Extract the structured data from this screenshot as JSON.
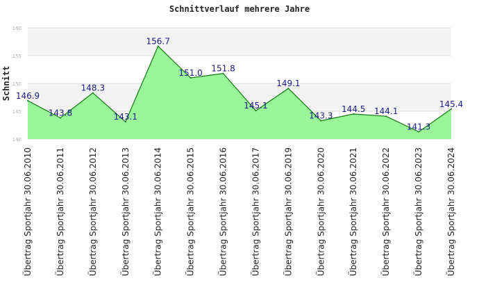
{
  "chart_data": {
    "type": "area",
    "title": "Schnittverlauf mehrere Jahre",
    "xlabel": "",
    "ylabel": "Schnitt",
    "ylim": [
      140,
      160
    ],
    "yticks": [
      140,
      145,
      150,
      155,
      160
    ],
    "grid": true,
    "categories": [
      "Übertrag Sportjahr 30.06.2010",
      "Übertrag Sportjahr 30.06.2011",
      "Übertrag Sportjahr 30.06.2012",
      "Übertrag Sportjahr 30.06.2013",
      "Übertrag Sportjahr 30.06.2014",
      "Übertrag Sportjahr 30.06.2015",
      "Übertrag Sportjahr 30.06.2016",
      "Übertrag Sportjahr 30.06.2017",
      "Übertrag Sportjahr 30.06.2019",
      "Übertrag Sportjahr 30.06.2020",
      "Übertrag Sportjahr 30.06.2021",
      "Übertrag Sportjahr 30.06.2022",
      "Übertrag Sportjahr 30.06.2023",
      "Übertrag Sportjahr 30.06.2024"
    ],
    "values": [
      146.9,
      143.8,
      148.3,
      143.1,
      156.7,
      151.0,
      151.8,
      145.1,
      149.1,
      143.3,
      144.5,
      144.1,
      141.3,
      145.4
    ],
    "value_labels": [
      "146.9",
      "143.8",
      "148.3",
      "143.1",
      "156.7",
      "151.0",
      "151.8",
      "145.1",
      "149.1",
      "143.3",
      "144.5",
      "144.1",
      "141.3",
      "145.4"
    ],
    "colors": {
      "fill": "#99f799",
      "line": "#117711",
      "band": "#f2f2f2",
      "grid": "#dddddd",
      "label": "#1a1a8c"
    }
  }
}
